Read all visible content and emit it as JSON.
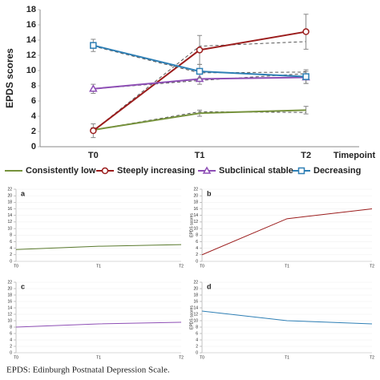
{
  "chart_data": [
    {
      "type": "line",
      "ylabel": "EPDS scores",
      "xlabel": "Timepoint",
      "categories": [
        "T0",
        "T1",
        "T2"
      ],
      "ylim": [
        0,
        18
      ],
      "yticks": [
        0,
        2,
        4,
        6,
        8,
        10,
        12,
        14,
        16,
        18
      ],
      "legend": "bottom",
      "series": [
        {
          "name": "Consistently low",
          "color": "#76923c",
          "marker": "none",
          "values": [
            2.2,
            4.4,
            4.8
          ],
          "errors": [
            0.3,
            0.4,
            0.5
          ],
          "estimated": [
            2.2,
            4.6,
            4.5
          ]
        },
        {
          "name": "Steeply increasing",
          "color": "#9b1c1c",
          "marker": "circle",
          "values": [
            2.1,
            12.7,
            15.1
          ],
          "errors": [
            0.9,
            1.9,
            2.3
          ],
          "estimated": [
            2.1,
            13.2,
            13.8
          ]
        },
        {
          "name": "Subclinical stable",
          "color": "#8e4fb5",
          "marker": "triangle",
          "values": [
            7.6,
            8.9,
            9.1
          ],
          "errors": [
            0.6,
            0.7,
            0.8
          ],
          "estimated": [
            7.6,
            8.7,
            9.6
          ]
        },
        {
          "name": "Decreasing",
          "color": "#2e7fb5",
          "marker": "square",
          "values": [
            13.3,
            9.9,
            9.2
          ],
          "errors": [
            0.8,
            0.9,
            0.9
          ],
          "estimated": [
            13.2,
            9.7,
            9.8
          ]
        }
      ]
    },
    {
      "type": "line",
      "label": "a",
      "categories": [
        "T0",
        "T1",
        "T2"
      ],
      "ylim": [
        0,
        22
      ],
      "yticks": [
        0,
        2,
        4,
        6,
        8,
        10,
        12,
        14,
        16,
        18,
        20,
        22
      ],
      "series": [
        {
          "color": "#5a7a2e",
          "values": [
            3.6,
            4.6,
            5.1
          ]
        }
      ]
    },
    {
      "type": "line",
      "label": "b",
      "ylabel": "EPDS scores",
      "categories": [
        "T0",
        "T1",
        "T2"
      ],
      "ylim": [
        0,
        22
      ],
      "yticks": [
        0,
        2,
        4,
        6,
        8,
        10,
        12,
        14,
        16,
        18,
        20,
        22
      ],
      "series": [
        {
          "color": "#9b1c1c",
          "values": [
            2.0,
            13.0,
            16.0
          ]
        }
      ]
    },
    {
      "type": "line",
      "label": "c",
      "categories": [
        "T0",
        "T1",
        "T2"
      ],
      "ylim": [
        0,
        22
      ],
      "yticks": [
        0,
        2,
        4,
        6,
        8,
        10,
        12,
        14,
        16,
        18,
        20,
        22
      ],
      "series": [
        {
          "color": "#8e4fb5",
          "values": [
            8.0,
            9.0,
            9.5
          ]
        }
      ]
    },
    {
      "type": "line",
      "label": "d",
      "ylabel": "EPDS scores",
      "categories": [
        "T0",
        "T1",
        "T2"
      ],
      "ylim": [
        0,
        22
      ],
      "yticks": [
        0,
        2,
        4,
        6,
        8,
        10,
        12,
        14,
        16,
        18,
        20,
        22
      ],
      "series": [
        {
          "color": "#2e7fb5",
          "values": [
            13.0,
            10.0,
            9.0
          ]
        }
      ]
    }
  ],
  "caption": "EPDS: Edinburgh Postnatal Depression Scale."
}
